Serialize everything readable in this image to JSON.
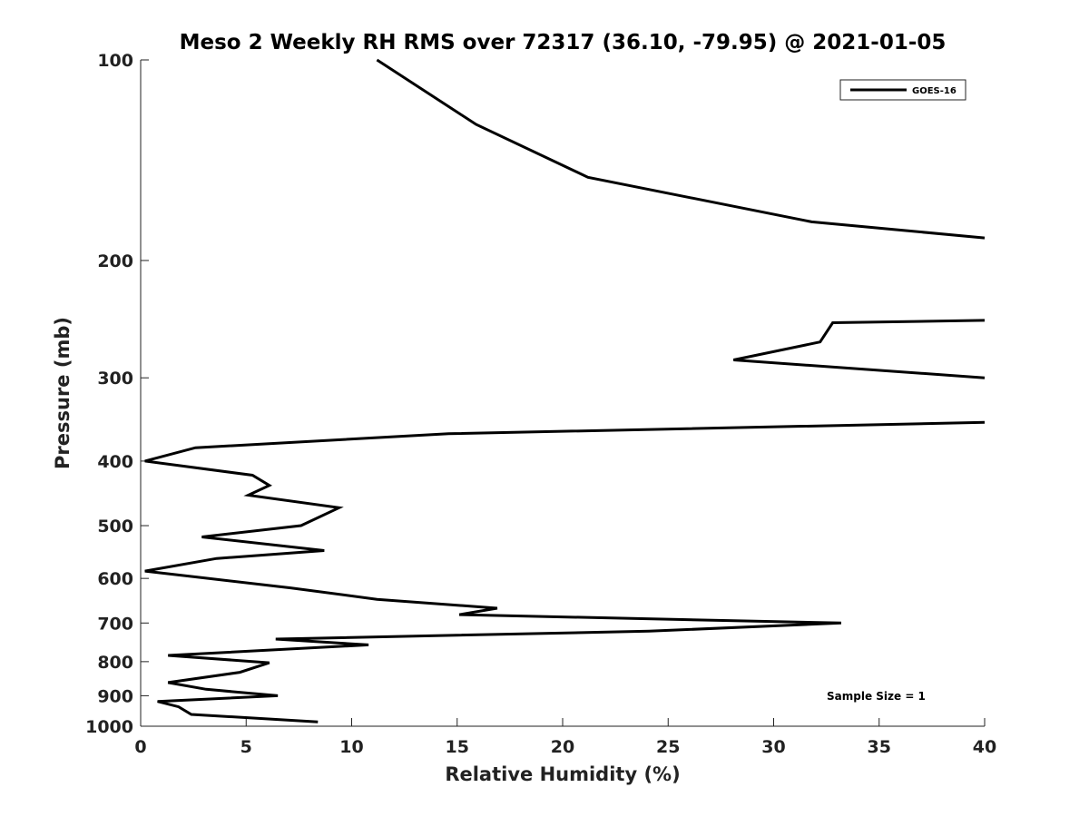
{
  "chart_data": {
    "type": "line",
    "title": "Meso 2 Weekly RH RMS over 72317 (36.10, -79.95) @ 2021-01-05",
    "xlabel": "Relative Humidity (%)",
    "ylabel": "Pressure (mb)",
    "xlim": [
      0,
      40
    ],
    "ylim": [
      100,
      1000
    ],
    "yscale": "log",
    "y_reversed": true,
    "grid": false,
    "legend_position": "top-right",
    "xticks": [
      "0",
      "5",
      "10",
      "15",
      "20",
      "25",
      "30",
      "35",
      "40"
    ],
    "yticks": [
      "100",
      "200",
      "300",
      "400",
      "500",
      "600",
      "700",
      "800",
      "900",
      "1000"
    ],
    "annotation": "Sample Size = 1",
    "series": [
      {
        "name": "GOES-16",
        "color": "#000000",
        "segments": [
          [
            {
              "x": 11.2,
              "y": 100
            },
            {
              "x": 15.9,
              "y": 125
            },
            {
              "x": 21.2,
              "y": 150
            },
            {
              "x": 31.8,
              "y": 175
            },
            {
              "x": 40,
              "y": 185
            }
          ],
          [
            {
              "x": 40,
              "y": 246
            },
            {
              "x": 32.8,
              "y": 248
            },
            {
              "x": 32.2,
              "y": 265
            },
            {
              "x": 28.1,
              "y": 282
            },
            {
              "x": 40,
              "y": 300
            }
          ],
          [
            {
              "x": 40,
              "y": 350
            },
            {
              "x": 14.6,
              "y": 364
            },
            {
              "x": 2.6,
              "y": 382
            },
            {
              "x": 0.2,
              "y": 400
            },
            {
              "x": 5.3,
              "y": 420
            },
            {
              "x": 6.1,
              "y": 435
            },
            {
              "x": 5.1,
              "y": 450
            },
            {
              "x": 9.4,
              "y": 470
            },
            {
              "x": 7.6,
              "y": 500
            },
            {
              "x": 2.9,
              "y": 520
            },
            {
              "x": 8.7,
              "y": 545
            },
            {
              "x": 3.6,
              "y": 560
            },
            {
              "x": 0.2,
              "y": 585
            },
            {
              "x": 7.1,
              "y": 620
            },
            {
              "x": 11.2,
              "y": 645
            },
            {
              "x": 16.9,
              "y": 665
            },
            {
              "x": 15.1,
              "y": 680
            },
            {
              "x": 33.2,
              "y": 700
            },
            {
              "x": 24.1,
              "y": 720
            },
            {
              "x": 6.4,
              "y": 740
            },
            {
              "x": 10.8,
              "y": 755
            },
            {
              "x": 1.3,
              "y": 783
            },
            {
              "x": 6.1,
              "y": 803
            },
            {
              "x": 4.7,
              "y": 830
            },
            {
              "x": 1.3,
              "y": 860
            },
            {
              "x": 3.1,
              "y": 880
            },
            {
              "x": 6.5,
              "y": 900
            },
            {
              "x": 0.8,
              "y": 918
            },
            {
              "x": 1.8,
              "y": 935
            },
            {
              "x": 2.4,
              "y": 960
            },
            {
              "x": 8.4,
              "y": 985
            }
          ]
        ]
      }
    ]
  }
}
